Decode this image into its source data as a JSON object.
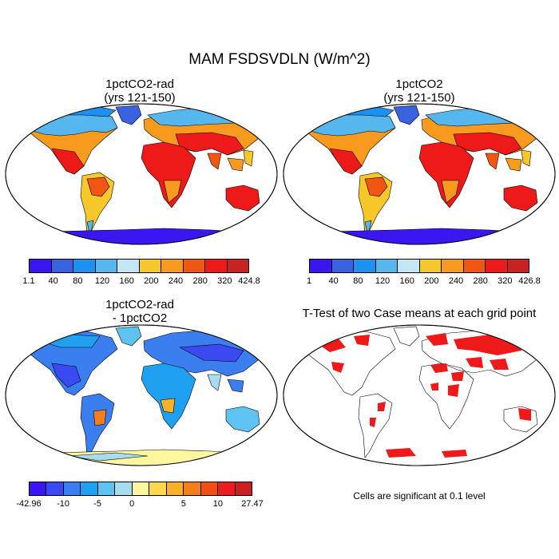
{
  "title": "MAM FSDSVDLN (W/m^2)",
  "panels": [
    {
      "title_line1": "1pctCO2-rad",
      "title_line2": "(yrs 121-150)"
    },
    {
      "title_line1": "1pctCO2",
      "title_line2": "(yrs 121-150)"
    },
    {
      "title_line1": "1pctCO2-rad",
      "title_line2": "- 1pctCO2"
    },
    {
      "title_line1": "T-Test of two Case means at each grid point"
    }
  ],
  "colorbars": [
    {
      "labels": [
        "1.1",
        "40",
        "80",
        "120",
        "160",
        "200",
        "240",
        "280",
        "320",
        "424.8"
      ],
      "colors": [
        "#3a16f0",
        "#3a62e0",
        "#1e90f0",
        "#56b6ee",
        "#c2e6f2",
        "#f7c82a",
        "#f79a1e",
        "#f15712",
        "#ee1a1a",
        "#c92222"
      ]
    },
    {
      "labels": [
        "1",
        "40",
        "80",
        "120",
        "160",
        "200",
        "240",
        "280",
        "320",
        "426.8"
      ],
      "colors": [
        "#3a16f0",
        "#3a62e0",
        "#1e90f0",
        "#56b6ee",
        "#c2e6f2",
        "#f7c82a",
        "#f79a1e",
        "#f15712",
        "#ee1a1a",
        "#c92222"
      ]
    },
    {
      "labels": [
        "-42.96",
        "-10",
        "-5",
        "0",
        "5",
        "10",
        "27.47"
      ],
      "colors": [
        "#3a16f0",
        "#3a4af0",
        "#3a7ef0",
        "#1fa0f0",
        "#5ec3f0",
        "#a8dcec",
        "#fff6a0",
        "#fcd84a",
        "#f9b02a",
        "#f57e1c",
        "#f04e16",
        "#ea1e1e",
        "#c62020"
      ]
    }
  ],
  "significance_note": "Cells are significant at 0.1 level",
  "colors": {
    "land_outline": "#000000",
    "significant": "#ee1a1a"
  }
}
